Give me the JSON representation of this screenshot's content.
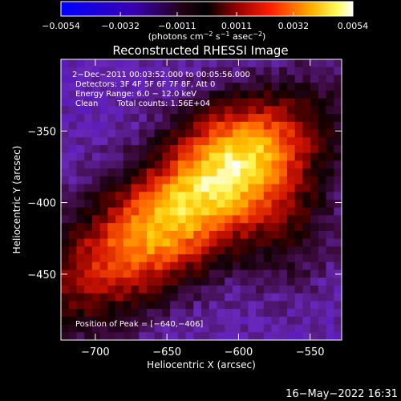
{
  "chart_data": {
    "type": "heatmap",
    "title": "Reconstructed RHESSI Image",
    "xlabel": "Heliocentric X (arcsec)",
    "ylabel": "Heliocentric Y (arcsec)",
    "xlim": [
      -724,
      -528
    ],
    "ylim": [
      -496,
      -300
    ],
    "x_ticks": [
      -700,
      -650,
      -600,
      -550
    ],
    "x_tick_labels": [
      "−700",
      "−650",
      "−600",
      "−550"
    ],
    "y_ticks": [
      -450,
      -400,
      -350
    ],
    "y_tick_labels": [
      "−450",
      "−400",
      "−350"
    ],
    "colorbar": {
      "range": [
        -0.0054,
        0.0054
      ],
      "ticks": [
        -0.0054,
        -0.0032,
        -0.0011,
        0.0011,
        0.0032,
        0.0054
      ],
      "tick_labels": [
        "−0.0054",
        "−0.0032",
        "−0.0011",
        "0.0011",
        "0.0032",
        "0.0054"
      ],
      "unit": "(photons cm",
      "unit_exp1": "−2",
      "unit_mid": " s",
      "unit_exp2": "−1",
      "unit_end": " asec",
      "unit_exp3": "−2",
      "unit_close": ")",
      "colormap": "rhessi-blue-purple-red-yellow-white"
    },
    "annotations": {
      "time_range": "2−Dec−2011 00:03:52.000 to 00:05:56.000",
      "detectors": "Detectors: 3F 4F 5F 6F 7F 8F, Att 0",
      "energy": "Energy Range: 6.0 − 12.0 keV",
      "clean": "Clean",
      "total_counts": "Total counts: 1.56E+04",
      "peak": "Position of Peak = [−640,−406]"
    },
    "peak": {
      "x": -640,
      "y": -406
    },
    "footer_timestamp": "16−May−2022 16:31"
  }
}
